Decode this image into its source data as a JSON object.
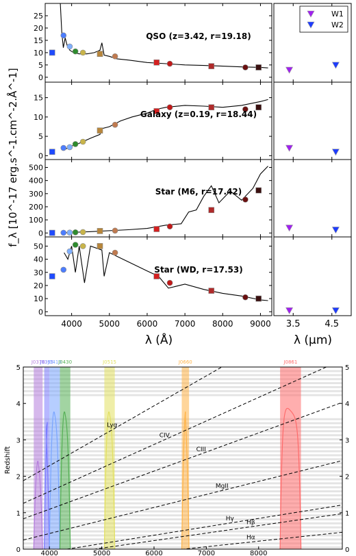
{
  "chart_data": [
    {
      "type": "line",
      "panel": "spectra",
      "xlabel": "λ (Å)",
      "ylabel": "f_λ [10^-17 erg.s^-1.cm^-2.Å^-1]",
      "xlim": [
        3300,
        9300
      ],
      "xticks": [
        "4000",
        "5000",
        "6000",
        "7000",
        "8000",
        "9000"
      ],
      "photometry_wavelengths": [
        3485,
        3785,
        3950,
        4100,
        4300,
        4750,
        5150,
        6250,
        6600,
        7700,
        8600,
        8950
      ],
      "photometry_colors": [
        "#1f4bff",
        "#4c7dff",
        "#80b0ff",
        "#2e8b2e",
        "#c8b44a",
        "#b8863b",
        "#c07a4f",
        "#d42020",
        "#c01818",
        "#b02a2a",
        "#6a1010",
        "#3a1010"
      ],
      "photometry_markers": [
        "square",
        "circle",
        "circle",
        "circle",
        "circle",
        "square",
        "circle",
        "square",
        "circle",
        "square",
        "circle",
        "square"
      ],
      "objects": [
        {
          "label": "QSO (z=3.42, r=19.18)",
          "ylim": [
            -2,
            30
          ],
          "yticks": [
            "0",
            "5",
            "10",
            "15",
            "20",
            "25"
          ],
          "photometry": [
            10,
            17,
            12.5,
            10.5,
            10,
            9.5,
            8.5,
            6,
            5.5,
            4.5,
            4,
            4
          ],
          "spectrum": [
            [
              3700,
              30
            ],
            [
              3740,
              18
            ],
            [
              3780,
              12
            ],
            [
              3830,
              16
            ],
            [
              3880,
              13
            ],
            [
              3950,
              11
            ],
            [
              4050,
              10
            ],
            [
              4200,
              9.5
            ],
            [
              4400,
              9.5
            ],
            [
              4600,
              10
            ],
            [
              4750,
              11
            ],
            [
              4800,
              14
            ],
            [
              4860,
              9
            ],
            [
              5000,
              8.5
            ],
            [
              5200,
              7.5
            ],
            [
              5500,
              7
            ],
            [
              6000,
              6
            ],
            [
              6500,
              5.5
            ],
            [
              7000,
              5
            ],
            [
              7500,
              4.8
            ],
            [
              8000,
              4.5
            ],
            [
              8500,
              4.2
            ],
            [
              9000,
              4
            ],
            [
              9200,
              3.8
            ]
          ]
        },
        {
          "label": "Galaxy (z=0.19, r=18.44)",
          "ylim": [
            -1,
            19
          ],
          "yticks": [
            "0",
            "5",
            "10",
            "15"
          ],
          "photometry": [
            1,
            2,
            2.2,
            3,
            3.6,
            6.5,
            8,
            11.5,
            12.5,
            12.5,
            12,
            12.5
          ],
          "spectrum": [
            [
              3800,
              1.5
            ],
            [
              4000,
              2.5
            ],
            [
              4200,
              3.2
            ],
            [
              4500,
              4.5
            ],
            [
              4750,
              5.5
            ],
            [
              4800,
              7
            ],
            [
              5000,
              7.5
            ],
            [
              5300,
              9
            ],
            [
              5600,
              10
            ],
            [
              6000,
              11
            ],
            [
              6250,
              12
            ],
            [
              6500,
              12.5
            ],
            [
              7000,
              13
            ],
            [
              7500,
              12.8
            ],
            [
              8000,
              12.5
            ],
            [
              8500,
              13
            ],
            [
              9000,
              14
            ],
            [
              9200,
              14.5
            ]
          ]
        },
        {
          "label": "Star (M6, r=17.42)",
          "ylim": [
            -30,
            560
          ],
          "yticks": [
            "0",
            "100",
            "200",
            "300",
            "400",
            "500"
          ],
          "photometry": [
            1,
            2,
            3,
            5,
            7,
            15,
            18,
            30,
            50,
            175,
            255,
            325
          ],
          "spectrum": [
            [
              3800,
              2
            ],
            [
              4500,
              10
            ],
            [
              5500,
              25
            ],
            [
              6000,
              35
            ],
            [
              6500,
              60
            ],
            [
              6900,
              70
            ],
            [
              7100,
              160
            ],
            [
              7300,
              175
            ],
            [
              7500,
              280
            ],
            [
              7700,
              360
            ],
            [
              7900,
              230
            ],
            [
              8200,
              320
            ],
            [
              8500,
              250
            ],
            [
              8800,
              340
            ],
            [
              9000,
              450
            ],
            [
              9200,
              510
            ]
          ]
        },
        {
          "label": "Star (WD, r=17.53)",
          "ylim": [
            -3,
            57
          ],
          "yticks": [
            "0",
            "10",
            "20",
            "30",
            "40",
            "50"
          ],
          "photometry": [
            27,
            32,
            46,
            51,
            50,
            50,
            45,
            27,
            22,
            16,
            11,
            10
          ],
          "spectrum": [
            [
              3800,
              45
            ],
            [
              3900,
              40
            ],
            [
              4000,
              50
            ],
            [
              4100,
              30
            ],
            [
              4200,
              50
            ],
            [
              4340,
              22
            ],
            [
              4500,
              50
            ],
            [
              4800,
              47
            ],
            [
              4860,
              27
            ],
            [
              5000,
              45
            ],
            [
              5500,
              38
            ],
            [
              6000,
              31
            ],
            [
              6300,
              27
            ],
            [
              6563,
              18
            ],
            [
              7000,
              21
            ],
            [
              7500,
              17
            ],
            [
              8000,
              14
            ],
            [
              8500,
              12
            ],
            [
              9000,
              9
            ],
            [
              9200,
              8.5
            ]
          ]
        }
      ]
    },
    {
      "type": "scatter",
      "panel": "wise",
      "xlabel": "λ (μm)",
      "xlim": [
        3.0,
        5.0
      ],
      "xticks": [
        "3.5",
        "4.5"
      ],
      "legend": [
        {
          "name": "W1",
          "x": 3.4,
          "color": "#a020f0"
        },
        {
          "name": "W2",
          "x": 4.6,
          "color": "#1e3cff"
        }
      ],
      "legend_position": "top-right",
      "values": [
        {
          "W1": 3,
          "W2": 5
        },
        {
          "W1": 2,
          "W2": 1
        },
        {
          "W1": 40,
          "W2": 25
        },
        {
          "W1": 1,
          "W2": 1
        }
      ]
    },
    {
      "type": "line",
      "panel": "redshift",
      "ylabel": "Redshift",
      "xlim": [
        3500,
        9600
      ],
      "ylim": [
        0,
        5
      ],
      "xticks": [
        "4000",
        "5000",
        "6000",
        "7000",
        "8000"
      ],
      "yticks": [
        "0",
        "1",
        "2",
        "3",
        "4",
        "5"
      ],
      "filters": [
        {
          "name": "J0378",
          "center": 3785,
          "width": 170,
          "color": "#b57edc"
        },
        {
          "name": "J0395",
          "center": 3950,
          "width": 100,
          "color": "#7b7bff"
        },
        {
          "name": "J0410",
          "center": 4100,
          "width": 200,
          "color": "#7aa6ff"
        },
        {
          "name": "J0430",
          "center": 4300,
          "width": 200,
          "color": "#55b055"
        },
        {
          "name": "J0515",
          "center": 5150,
          "width": 200,
          "color": "#e2e060"
        },
        {
          "name": "J0660",
          "center": 6600,
          "width": 140,
          "color": "#ffb347"
        },
        {
          "name": "J0861",
          "center": 8610,
          "width": 400,
          "color": "#ff6b6b"
        }
      ],
      "lines": [
        {
          "name": "Lyα",
          "rest": 1216
        },
        {
          "name": "CIV",
          "rest": 1549
        },
        {
          "name": "CIII",
          "rest": 1909
        },
        {
          "name": "MgII",
          "rest": 2798
        },
        {
          "name": "Hγ",
          "rest": 4340
        },
        {
          "name": "Hβ",
          "rest": 4861
        },
        {
          "name": "Hα",
          "rest": 6563
        }
      ]
    }
  ]
}
